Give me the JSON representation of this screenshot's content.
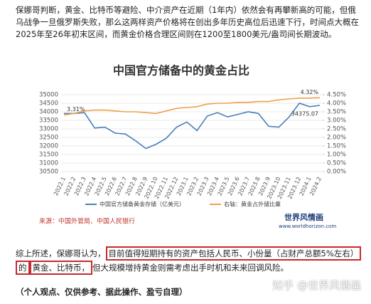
{
  "paragraphs": [
    "保娜哥判断，黄金、比特币等避险、中介资产在近期（1年内）依然会有再攀新高的可能，但俄乌战争一旦俄罗斯失败，那么这两样资产价格将在创出多年历史高位后迅速下行，时间点大概在2025年至26年初末区间，而黄金价格合理区间则在1200至1800美元/盎司间长期波动。"
  ],
  "chart_data": {
    "type": "line",
    "title": "中国官方储备中的黄金占比",
    "categories": [
      "2022.1",
      "2022.2",
      "2022.3",
      "2022.4",
      "2022.5",
      "2022.6",
      "2022.7",
      "2022.8",
      "2022.9",
      "2022.10",
      "2022.11",
      "2022.12",
      "2023.1",
      "2023.2",
      "2023.3",
      "2023.4",
      "2023.5",
      "2023.6",
      "2023.7",
      "2023.8",
      "2023.9",
      "2023.10",
      "2023.11",
      "2023.12",
      "2024.1",
      "2024.2"
    ],
    "series": [
      {
        "name": "中国官方储备黄金存储（亿美元）",
        "color": "#4a7ebb",
        "values": [
          33900,
          33900,
          33950,
          33050,
          33100,
          32750,
          32700,
          32300,
          31850,
          32100,
          32450,
          33100,
          33400,
          32900,
          33750,
          33950,
          33700,
          33850,
          34000,
          33900,
          33150,
          33100,
          33700,
          34500,
          34300,
          34375.07
        ],
        "value_labels": [
          null,
          null,
          null,
          null,
          null,
          null,
          null,
          null,
          null,
          null,
          null,
          null,
          null,
          null,
          null,
          null,
          null,
          null,
          null,
          null,
          null,
          null,
          null,
          null,
          null,
          "34375.07"
        ]
      },
      {
        "name": "右轴：黄金占外储比重",
        "color": "#f0a04b",
        "axis": "y2",
        "values": [
          3.31,
          3.4,
          3.55,
          3.6,
          3.6,
          3.55,
          3.5,
          3.5,
          3.45,
          3.4,
          3.55,
          3.7,
          3.75,
          3.8,
          3.95,
          4.0,
          4.0,
          4.05,
          4.05,
          4.1,
          4.1,
          4.2,
          4.25,
          4.3,
          4.3,
          4.32
        ],
        "value_labels": [
          "3.31%",
          null,
          null,
          null,
          null,
          null,
          null,
          null,
          null,
          null,
          null,
          null,
          null,
          null,
          null,
          null,
          null,
          null,
          null,
          null,
          null,
          null,
          null,
          null,
          null,
          "4.32%"
        ]
      }
    ],
    "ylim": [
      30500,
      35000
    ],
    "yticks": [
      30500,
      31000,
      31500,
      32000,
      32500,
      33000,
      33500,
      34000,
      34500,
      35000
    ],
    "y2lim": [
      0,
      4.5
    ],
    "y2ticks": [
      {
        "value": 0,
        "label": "0.00%"
      },
      {
        "value": 0.5,
        "label": "0.50%"
      },
      {
        "value": 1,
        "label": "1.00%"
      },
      {
        "value": 1.5,
        "label": "1.50%"
      },
      {
        "value": 2,
        "label": "2.00%"
      },
      {
        "value": 2.5,
        "label": "2.50%"
      },
      {
        "value": 3,
        "label": "3.00%"
      },
      {
        "value": 3.5,
        "label": "3.50%"
      },
      {
        "value": 4,
        "label": "4.00%"
      },
      {
        "value": 4.5,
        "label": "4.50%"
      }
    ],
    "grid": true,
    "source": "来源：中国外管局、中国人民银行",
    "logo": "世界风情画",
    "logo_url": "www.worldhorizon.com"
  },
  "summary": {
    "lead": "综上所述，保娜哥认为，",
    "highlight_1": "目前值得短期持有的资产包括人民币、小份量（占财产总额5%左右）的",
    "highlight_2": "黄金、比特币，",
    "rest": "但大规模增持黄金则需考虑出手时机和未来回调风险。"
  },
  "disclaimer": "（个人观点、仅供参考、据此操作、盈亏自理）",
  "watermark": "知乎 @世界风情画"
}
